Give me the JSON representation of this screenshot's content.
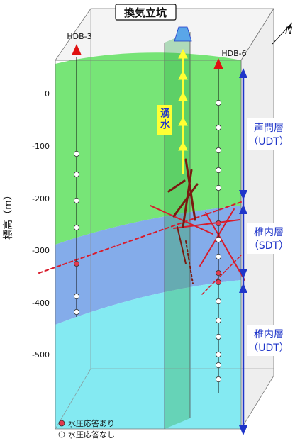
{
  "shaft": {
    "label": "換気立坑"
  },
  "wells": [
    {
      "id": "hdb3",
      "label": "HDB-3"
    },
    {
      "id": "hdb6",
      "label": "HDB-6"
    }
  ],
  "north": {
    "label": "N"
  },
  "axis": {
    "ylabel": "標高（m）",
    "ticks": [
      "0",
      "-100",
      "-200",
      "-300",
      "-400",
      "-500"
    ],
    "tick_values": [
      0,
      -100,
      -200,
      -300,
      -400,
      -500
    ]
  },
  "inflow": {
    "label": "湧水"
  },
  "layers": [
    {
      "id": "koetoi",
      "name": "声問層",
      "code": "（UDT）",
      "color": "#5fe05f"
    },
    {
      "id": "wakkanai-sdt",
      "name": "稚内層",
      "code": "（SDT）",
      "color": "#6f9ee6"
    },
    {
      "id": "wakkanai-udt",
      "name": "稚内層",
      "code": "（UDT）",
      "color": "#6fe6f0"
    }
  ],
  "legend": {
    "response_yes": "水圧応答あり",
    "response_no": "水圧応答なし",
    "color_yes": "#e23a4e",
    "color_no": "#ffffff"
  },
  "colors": {
    "fault": "#d81c2c",
    "fault_dark": "#7a1a10",
    "arrow": "#ffff33",
    "bracket": "#1f35c9"
  }
}
